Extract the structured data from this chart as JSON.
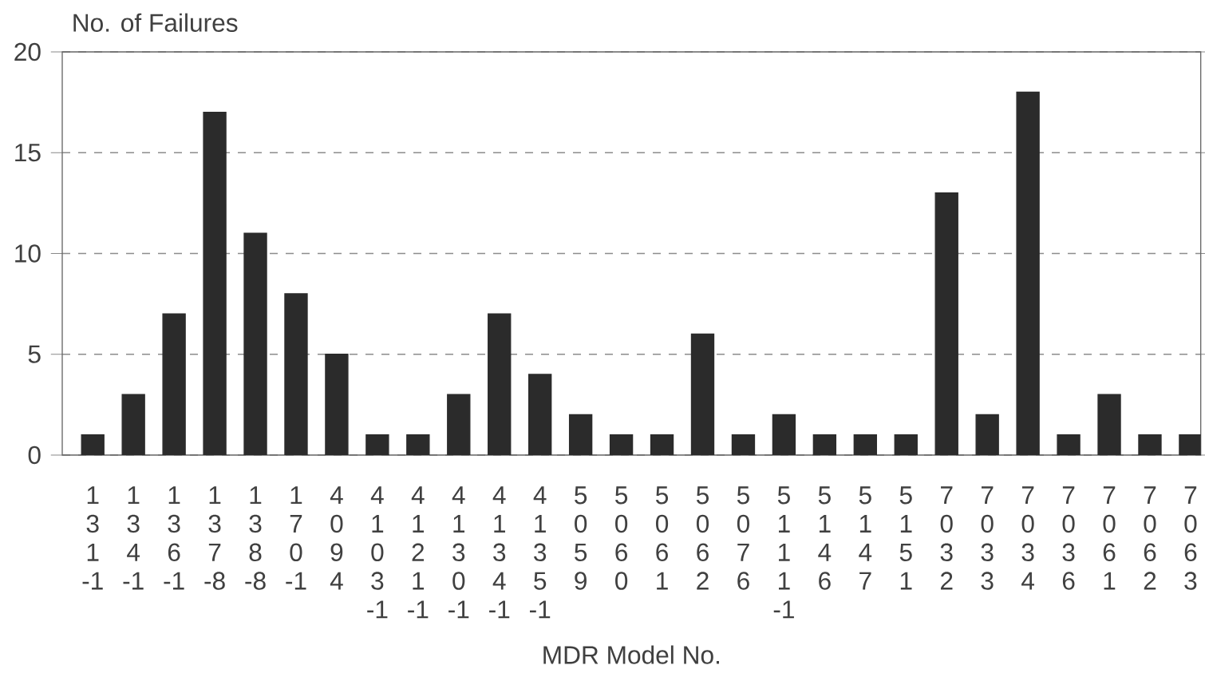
{
  "chart_data": {
    "type": "bar",
    "xlabel": "MDR Model No.",
    "ylabel": "No. of Failures",
    "categories": [
      "131-1",
      "134-1",
      "136-1",
      "137-8",
      "138-8",
      "170-1",
      "4094",
      "4103-1",
      "4121-1",
      "4130-1",
      "4134-1",
      "4135-1",
      "5059",
      "5060",
      "5061",
      "5062",
      "5076",
      "5111-1",
      "5146",
      "5147",
      "5151",
      "7032",
      "7033",
      "7034",
      "7036",
      "7061",
      "7062",
      "7063"
    ],
    "values": [
      1,
      3,
      7,
      17,
      11,
      8,
      5,
      1,
      1,
      3,
      7,
      4,
      2,
      1,
      1,
      6,
      1,
      2,
      1,
      1,
      1,
      13,
      2,
      18,
      1,
      3,
      1,
      1
    ],
    "color": "#2b2b2b",
    "ylim": [
      0,
      20
    ],
    "yticks": [
      0,
      5,
      10,
      15,
      20
    ],
    "grid": "y"
  }
}
